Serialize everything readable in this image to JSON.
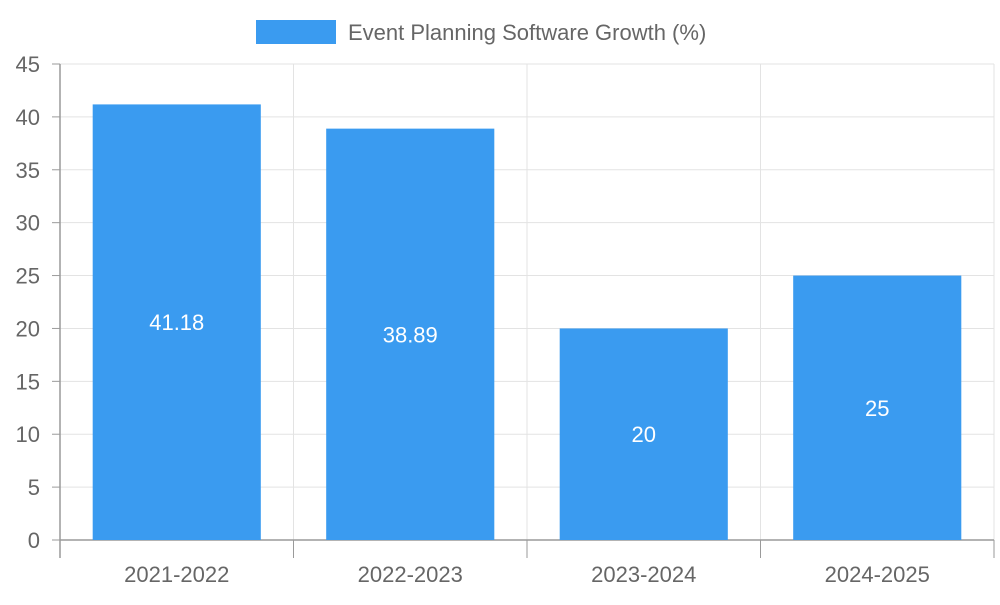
{
  "chart_data": {
    "type": "bar",
    "categories": [
      "2021-2022",
      "2022-2023",
      "2023-2024",
      "2024-2025"
    ],
    "series": [
      {
        "name": "Event Planning Software Growth (%)",
        "values": [
          41.18,
          38.89,
          20,
          25
        ]
      }
    ],
    "value_labels": [
      "41.18",
      "38.89",
      "20",
      "25"
    ],
    "ylim": [
      0,
      45
    ],
    "yticks": [
      0,
      5,
      10,
      15,
      20,
      25,
      30,
      35,
      40,
      45
    ],
    "ytick_labels": [
      "0",
      "5",
      "10",
      "15",
      "20",
      "25",
      "30",
      "35",
      "40",
      "45"
    ],
    "grid": true,
    "legend_position": "top-center",
    "title": "",
    "xlabel": "",
    "ylabel": ""
  },
  "colors": {
    "bar": "#3a9bf0",
    "grid": "#e3e3e3",
    "axis": "#9a9a9a",
    "tick_text": "#666666",
    "bar_label": "#ffffff"
  }
}
